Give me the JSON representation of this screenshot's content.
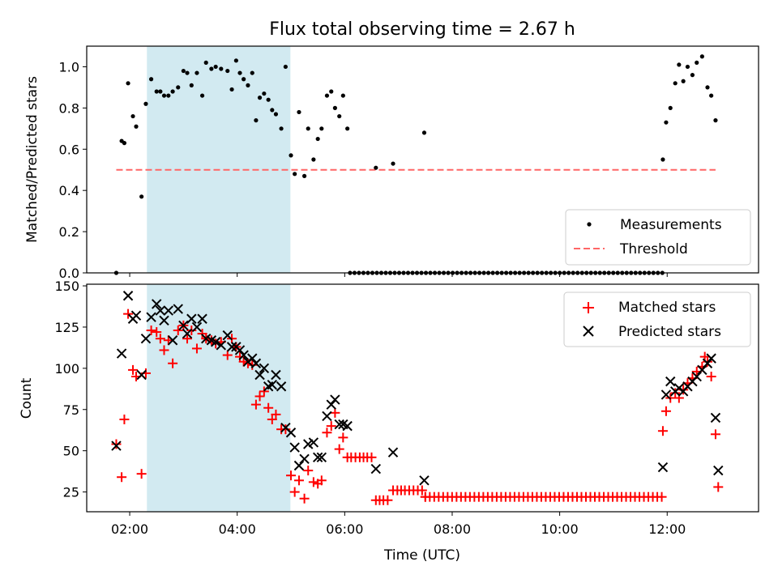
{
  "title": "Flux total observing time = 2.67 h",
  "colors": {
    "shade": "#add8e6",
    "measurement": "#000000",
    "threshold": "#ff6666",
    "matched": "#ff0000",
    "predicted": "#000000"
  },
  "chart_data": [
    {
      "type": "scatter",
      "ylabel": "Matched/Predicted stars",
      "xlim": [
        1.2,
        13.7
      ],
      "ylim": [
        0,
        1.1
      ],
      "yticks": [
        "0.0",
        "0.2",
        "0.4",
        "0.6",
        "0.8",
        "1.0"
      ],
      "yticks_values": [
        0,
        0.2,
        0.4,
        0.6,
        0.8,
        1.0
      ],
      "shaded_span": [
        2.32,
        4.99
      ],
      "legend": {
        "position": "lower-right",
        "entries": [
          "Measurements",
          "Threshold"
        ]
      },
      "threshold": {
        "name": "Threshold",
        "value": 0.5,
        "x": [
          1.75,
          12.9
        ]
      },
      "series": [
        {
          "name": "Measurements",
          "x": [
            1.75,
            1.85,
            1.9,
            1.97,
            2.06,
            2.12,
            2.22,
            2.3,
            2.4,
            2.5,
            2.57,
            2.64,
            2.72,
            2.8,
            2.9,
            3.0,
            3.07,
            3.15,
            3.25,
            3.35,
            3.42,
            3.52,
            3.6,
            3.7,
            3.82,
            3.9,
            3.98,
            4.05,
            4.12,
            4.2,
            4.28,
            4.35,
            4.42,
            4.5,
            4.58,
            4.65,
            4.72,
            4.82,
            4.9,
            5.0,
            5.07,
            5.15,
            5.25,
            5.32,
            5.42,
            5.5,
            5.57,
            5.67,
            5.75,
            5.82,
            5.9,
            5.97,
            6.05,
            6.58,
            6.9,
            7.48,
            11.92,
            11.98,
            12.06,
            12.15,
            12.22,
            12.3,
            12.38,
            12.47,
            12.55,
            12.65,
            12.75,
            12.82,
            12.9
          ],
          "y": [
            0.0,
            0.64,
            0.63,
            0.92,
            0.76,
            0.71,
            0.37,
            0.82,
            0.94,
            0.88,
            0.88,
            0.86,
            0.86,
            0.88,
            0.9,
            0.98,
            0.97,
            0.91,
            0.97,
            0.86,
            1.02,
            0.99,
            1.0,
            0.99,
            0.98,
            0.89,
            1.03,
            0.97,
            0.94,
            0.91,
            0.97,
            0.74,
            0.85,
            0.87,
            0.84,
            0.79,
            0.77,
            0.7,
            1.0,
            0.57,
            0.48,
            0.78,
            0.47,
            0.7,
            0.55,
            0.65,
            0.7,
            0.86,
            0.88,
            0.8,
            0.76,
            0.86,
            0.7,
            0.51,
            0.53,
            0.68,
            0.55,
            0.73,
            0.8,
            0.92,
            1.01,
            0.93,
            1.0,
            0.96,
            1.02,
            1.05,
            0.9,
            0.86,
            0.74
          ]
        },
        {
          "name": "Zero measurements",
          "x_range": [
            6.1,
            11.95
          ],
          "x_step": 0.083,
          "y": 0.0
        }
      ]
    },
    {
      "type": "scatter",
      "xlabel": "Time (UTC)",
      "ylabel": "Count",
      "xlim": [
        1.2,
        13.7
      ],
      "ylim": [
        13,
        151
      ],
      "xticks": [
        "02:00",
        "04:00",
        "06:00",
        "08:00",
        "10:00",
        "12:00"
      ],
      "xticks_values": [
        2,
        4,
        6,
        8,
        10,
        12
      ],
      "yticks": [
        "25",
        "50",
        "75",
        "100",
        "125",
        "150"
      ],
      "yticks_values": [
        25,
        50,
        75,
        100,
        125,
        150
      ],
      "shaded_span": [
        2.32,
        4.99
      ],
      "legend": {
        "position": "top-right",
        "entries": [
          "Matched stars",
          "Predicted stars"
        ]
      },
      "series": [
        {
          "name": "Matched stars",
          "marker": "+",
          "x": [
            1.75,
            1.85,
            1.9,
            1.97,
            2.06,
            2.12,
            2.22,
            2.3,
            2.4,
            2.5,
            2.57,
            2.64,
            2.72,
            2.8,
            2.9,
            3.0,
            3.07,
            3.15,
            3.25,
            3.35,
            3.42,
            3.52,
            3.6,
            3.7,
            3.82,
            3.9,
            3.98,
            4.05,
            4.12,
            4.2,
            4.28,
            4.35,
            4.42,
            4.5,
            4.58,
            4.65,
            4.72,
            4.82,
            4.9,
            5.0,
            5.07,
            5.15,
            5.25,
            5.32,
            5.42,
            5.5,
            5.57,
            5.67,
            5.75,
            5.82,
            5.9,
            5.97,
            6.05,
            6.12,
            6.2,
            6.28,
            6.35,
            6.42,
            6.5,
            6.58,
            6.65,
            6.72,
            6.8,
            6.9,
            6.98,
            7.05,
            7.12,
            7.2,
            7.28,
            7.36,
            7.44,
            7.5,
            11.92,
            11.98,
            12.06,
            12.15,
            12.22,
            12.3,
            12.38,
            12.47,
            12.55,
            12.65,
            12.7,
            12.75,
            12.82,
            12.9,
            12.95
          ],
          "y": [
            54,
            34,
            69,
            133,
            99,
            95,
            36,
            97,
            123,
            122,
            118,
            111,
            117,
            103,
            123,
            126,
            118,
            123,
            112,
            121,
            118,
            117,
            115,
            116,
            108,
            118,
            113,
            107,
            104,
            103,
            102,
            78,
            83,
            86,
            76,
            69,
            72,
            63,
            63,
            35,
            25,
            32,
            21,
            38,
            31,
            30,
            32,
            61,
            65,
            73,
            51,
            58,
            46,
            46,
            46,
            46,
            46,
            46,
            46,
            20,
            20,
            20,
            20,
            26,
            26,
            26,
            26,
            26,
            26,
            26,
            26,
            22,
            62,
            74,
            82,
            85,
            82,
            87,
            91,
            94,
            98,
            101,
            107,
            104,
            95,
            60,
            28
          ]
        },
        {
          "name": "Matched stars (floor)",
          "marker": "+",
          "x_range": [
            7.5,
            11.95
          ],
          "x_step": 0.083,
          "y": 22
        },
        {
          "name": "Predicted stars",
          "marker": "x",
          "x": [
            1.75,
            1.85,
            1.97,
            2.06,
            2.12,
            2.22,
            2.3,
            2.4,
            2.5,
            2.57,
            2.64,
            2.72,
            2.8,
            2.9,
            3.0,
            3.07,
            3.15,
            3.25,
            3.35,
            3.42,
            3.52,
            3.6,
            3.7,
            3.82,
            3.9,
            3.98,
            4.05,
            4.12,
            4.2,
            4.28,
            4.35,
            4.42,
            4.5,
            4.58,
            4.65,
            4.72,
            4.82,
            4.9,
            5.0,
            5.07,
            5.15,
            5.25,
            5.32,
            5.42,
            5.5,
            5.57,
            5.67,
            5.75,
            5.82,
            5.9,
            5.97,
            6.05,
            6.58,
            6.9,
            7.48,
            11.92,
            11.98,
            12.06,
            12.15,
            12.22,
            12.3,
            12.38,
            12.47,
            12.55,
            12.65,
            12.75,
            12.82,
            12.9,
            12.95
          ],
          "y": [
            53,
            109,
            144,
            130,
            132,
            96,
            118,
            131,
            139,
            135,
            129,
            135,
            117,
            136,
            126,
            121,
            130,
            125,
            130,
            118,
            117,
            116,
            114,
            120,
            113,
            113,
            111,
            108,
            104,
            106,
            103,
            96,
            100,
            89,
            90,
            96,
            89,
            64,
            61,
            52,
            41,
            45,
            54,
            55,
            46,
            46,
            71,
            78,
            81,
            66,
            66,
            65,
            39,
            49,
            32,
            40,
            84,
            92,
            86,
            88,
            86,
            89,
            92,
            95,
            99,
            103,
            106,
            70,
            38
          ]
        }
      ]
    }
  ]
}
